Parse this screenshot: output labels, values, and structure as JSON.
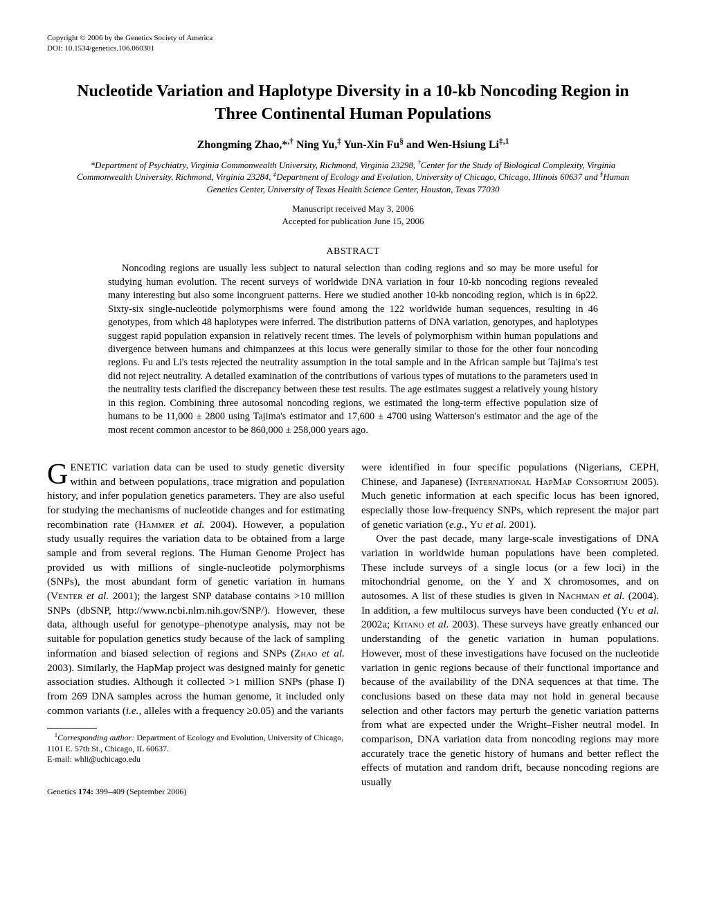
{
  "topline": {
    "copyright": "Copyright © 2006 by the Genetics Society of America",
    "doi": "DOI: 10.1534/genetics.106.060301"
  },
  "title": "Nucleotide Variation and Haplotype Diversity in a 10-kb Noncoding Region in Three Continental Human Populations",
  "authors_html": "Zhongming Zhao,*<sup>,†</sup> Ning Yu,<sup>‡</sup> Yun-Xin Fu<sup>§</sup> and Wen-Hsiung Li<sup>‡,1</sup>",
  "affiliations_html": "*Department of Psychiatry, Virginia Commonwealth University, Richmond, Virginia 23298, <sup>†</sup>Center for the Study of Biological Complexity, Virginia Commonwealth University, Richmond, Virginia 23284, <sup>‡</sup>Department of Ecology and Evolution, University of Chicago, Chicago, Illinois 60637 and <sup>§</sup>Human Genetics Center, University of Texas Health Science Center, Houston, Texas 77030",
  "dates": {
    "received": "Manuscript received May 3, 2006",
    "accepted": "Accepted for publication June 15, 2006"
  },
  "abstract_heading": "ABSTRACT",
  "abstract": "Noncoding regions are usually less subject to natural selection than coding regions and so may be more useful for studying human evolution. The recent surveys of worldwide DNA variation in four 10-kb noncoding regions revealed many interesting but also some incongruent patterns. Here we studied another 10-kb noncoding region, which is in 6p22. Sixty-six single-nucleotide polymorphisms were found among the 122 worldwide human sequences, resulting in 46 genotypes, from which 48 haplotypes were inferred. The distribution patterns of DNA variation, genotypes, and haplotypes suggest rapid population expansion in relatively recent times. The levels of polymorphism within human populations and divergence between humans and chimpanzees at this locus were generally similar to those for the other four noncoding regions. Fu and Li's tests rejected the neutrality assumption in the total sample and in the African sample but Tajima's test did not reject neutrality. A detailed examination of the contributions of various types of mutations to the parameters used in the neutrality tests clarified the discrepancy between these test results. The age estimates suggest a relatively young history in this region. Combining three autosomal noncoding regions, we estimated the long-term effective population size of humans to be 11,000 ± 2800 using Tajima's estimator and 17,600 ± 4700 using Watterson's estimator and the age of the most recent common ancestor to be 860,000 ± 258,000 years ago.",
  "body": {
    "p1_html": "<span class=\"dropcap\">G</span>ENETIC variation data can be used to study genetic diversity within and between populations, trace migration and population history, and infer population genetics parameters. They are also useful for studying the mechanisms of nucleotide changes and for estimating recombination rate (<span class=\"smallcaps\">Hammer</span> <i>et al.</i> 2004). However, a population study usually requires the variation data to be obtained from a large sample and from several regions. The Human Genome Project has provided us with millions of single-nucleotide polymorphisms (SNPs), the most abundant form of genetic variation in humans (<span class=\"smallcaps\">Venter</span> <i>et al.</i> 2001); the largest SNP database contains &gt;10 million SNPs (dbSNP, http://www.ncbi.nlm.nih.gov/SNP/). However, these data, although useful for genotype–phenotype analysis, may not be suitable for population genetics study because of the lack of sampling information and biased selection of regions and SNPs (<span class=\"smallcaps\">Zhao</span> <i>et al.</i> 2003). Similarly, the HapMap project was designed mainly for genetic association studies. Although it collected &gt;1 million SNPs (phase I) from 269 DNA samples across the human genome, it included only common variants (<i>i.e.</i>, alleles with a frequency ≥0.05) and the variants",
    "p2_html": "were identified in four specific populations (Nigerians, CEPH, Chinese, and Japanese) (<span class=\"smallcaps\">International HapMap Consortium</span> 2005). Much genetic information at each specific locus has been ignored, especially those low-frequency SNPs, which represent the major part of genetic variation (<i>e.g.</i>, <span class=\"smallcaps\">Yu</span> <i>et al.</i> 2001).",
    "p3_html": "Over the past decade, many large-scale investigations of DNA variation in worldwide human populations have been completed. These include surveys of a single locus (or a few loci) in the mitochondrial genome, on the Y and X chromosomes, and on autosomes. A list of these studies is given in <span class=\"smallcaps\">Nachman</span> <i>et al.</i> (2004). In addition, a few multilocus surveys have been conducted (<span class=\"smallcaps\">Yu</span> <i>et al.</i> 2002a; <span class=\"smallcaps\">Kitano</span> <i>et al.</i> 2003). These surveys have greatly enhanced our understanding of the genetic variation in human populations. However, most of these investigations have focused on the nucleotide variation in genic regions because of their functional importance and because of the availability of the DNA sequences at that time. The conclusions based on these data may not hold in general because selection and other factors may perturb the genetic variation patterns from what are expected under the Wright–Fisher neutral model. In comparison, DNA variation data from noncoding regions may more accurately trace the genetic history of humans and better reflect the effects of mutation and random drift, because noncoding regions are usually"
  },
  "footnote": {
    "line1_html": "<sup>1</sup><i>Corresponding author:</i> Department of Ecology and Evolution, University of Chicago, 1101 E. 57th St., Chicago, IL 60637.",
    "line2": "E-mail: whli@uchicago.edu"
  },
  "pagefoot_html": "Genetics <b>174:</b> 399–409 (September 2006)"
}
